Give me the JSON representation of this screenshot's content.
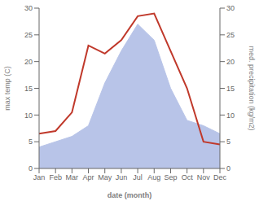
{
  "chart_data": {
    "type": "line",
    "xlabel": "date (month)",
    "ylabel": "max temp (C)",
    "y2label": "med. precipitation (kg/m2)",
    "categories": [
      "Jan",
      "Feb",
      "Mar",
      "Apr",
      "May",
      "Jun",
      "Jul",
      "Aug",
      "Sep",
      "Oct",
      "Nov",
      "Dec"
    ],
    "series": [
      {
        "type": "area",
        "color": "#b8c4e8",
        "axis": "y2",
        "values": [
          4.0,
          5.0,
          6.0,
          8.0,
          16.0,
          22.0,
          27.0,
          24.0,
          15.0,
          9.0,
          8.0,
          6.5
        ]
      },
      {
        "type": "line",
        "color": "#c0392b",
        "values": [
          6.5,
          7.0,
          10.5,
          23.0,
          21.5,
          24.0,
          28.5,
          29.0,
          22.0,
          15.0,
          5.0,
          4.5
        ]
      }
    ],
    "ylim": [
      0,
      30
    ],
    "yticks": [
      0,
      5,
      10,
      15,
      20,
      25,
      30
    ],
    "y2lim": [
      0,
      30
    ],
    "y2ticks": [
      0,
      5,
      10,
      15,
      20,
      25,
      30
    ],
    "grid": false
  }
}
